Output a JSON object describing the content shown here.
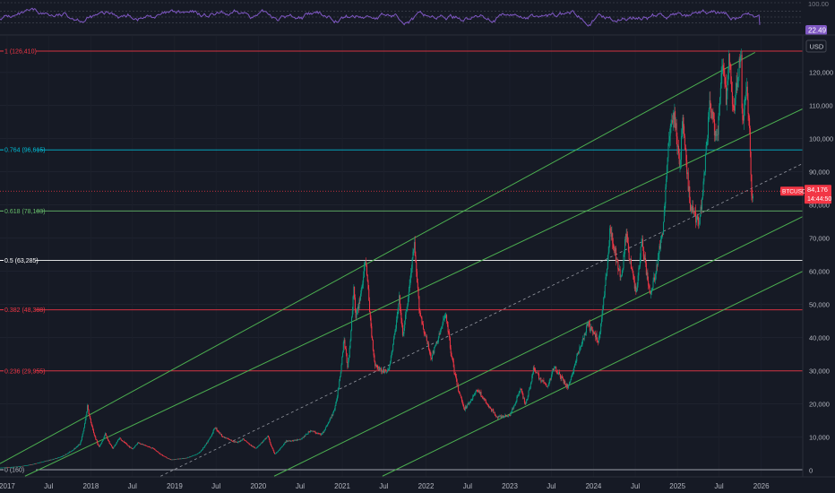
{
  "rsi_panel": {
    "level_label": "100.00",
    "value_label": "22.49",
    "levels": [
      100,
      70,
      50,
      30
    ],
    "value": 22.49,
    "line_color": "#7e57c2",
    "badge_color": "#7e57c2"
  },
  "price_panel": {
    "currency_button": "USD",
    "symbol_badge": "BTCUSD",
    "last_price": "84,176",
    "countdown": "14:44:50",
    "badge_color": "#f23645"
  },
  "chart_data": {
    "type": "candlestick",
    "symbol": "BTCUSD",
    "x_range": [
      "2016-12-01",
      "2026-07-01"
    ],
    "ylim": [
      -2000,
      131000
    ],
    "x_ticks": [
      "2017",
      "Jul",
      "2018",
      "Jul",
      "2019",
      "Jul",
      "2020",
      "Jul",
      "2021",
      "Jul",
      "2022",
      "Jul",
      "2023",
      "Jul",
      "2024",
      "Jul",
      "2025",
      "Jul",
      "2026"
    ],
    "x_tick_dates": [
      "2017-01-01",
      "2017-07-01",
      "2018-01-01",
      "2018-07-01",
      "2019-01-01",
      "2019-07-01",
      "2020-01-01",
      "2020-07-01",
      "2021-01-01",
      "2021-07-01",
      "2022-01-01",
      "2022-07-01",
      "2023-01-01",
      "2023-07-01",
      "2024-01-01",
      "2024-07-01",
      "2025-01-01",
      "2025-07-01",
      "2026-01-01"
    ],
    "y_ticks": [
      0,
      10000,
      20000,
      30000,
      40000,
      50000,
      60000,
      70000,
      80000,
      90000,
      100000,
      110000,
      120000
    ],
    "y_tick_labels": [
      "0",
      "10,000",
      "20,000",
      "30,000",
      "40,000",
      "50,000",
      "60,000",
      "70,000",
      "80,000",
      "90,000",
      "100,000",
      "110,000",
      "120,000"
    ],
    "fib_levels": [
      {
        "label": "1 (126,410)",
        "value": 126410,
        "color": "#f23645"
      },
      {
        "label": "0.764 (96,615)",
        "value": 96615,
        "color": "#00bcd4"
      },
      {
        "label": "0.618 (78,183)",
        "value": 78183,
        "color": "#66bb6a"
      },
      {
        "label": "0.5 (63,285)",
        "value": 63285,
        "color": "#ffffff"
      },
      {
        "label": "0.382 (48,388)",
        "value": 48388,
        "color": "#f23645"
      },
      {
        "label": "0.236 (29,955)",
        "value": 29955,
        "color": "#f23645"
      },
      {
        "label": "0 (160)",
        "value": 160,
        "color": "#b2b5be"
      }
    ],
    "channel_lines": [
      {
        "style": "solid",
        "points": [
          [
            "2016-12-01",
            2000
          ],
          [
            "2025-12-05",
            126000
          ]
        ]
      },
      {
        "style": "solid",
        "points": [
          [
            "2017-03-20",
            -1800
          ],
          [
            "2026-07-01",
            109000
          ]
        ]
      },
      {
        "style": "dashed",
        "points": [
          [
            "2018-11-01",
            -1800
          ],
          [
            "2026-07-01",
            92500
          ]
        ]
      },
      {
        "style": "solid",
        "points": [
          [
            "2020-03-10",
            -1800
          ],
          [
            "2026-07-01",
            76500
          ]
        ]
      },
      {
        "style": "solid",
        "points": [
          [
            "2021-06-25",
            -1800
          ],
          [
            "2026-07-01",
            60000
          ]
        ]
      }
    ],
    "price_path": [
      [
        "2016-12-01",
        750
      ],
      [
        "2017-03-01",
        1200
      ],
      [
        "2017-06-01",
        2500
      ],
      [
        "2017-09-01",
        4300
      ],
      [
        "2017-11-15",
        8000
      ],
      [
        "2017-12-17",
        19500
      ],
      [
        "2018-02-06",
        7000
      ],
      [
        "2018-03-05",
        11000
      ],
      [
        "2018-04-06",
        6600
      ],
      [
        "2018-05-05",
        9800
      ],
      [
        "2018-07-01",
        6400
      ],
      [
        "2018-07-25",
        8400
      ],
      [
        "2018-10-01",
        6500
      ],
      [
        "2018-12-15",
        3200
      ],
      [
        "2019-02-15",
        3600
      ],
      [
        "2019-04-15",
        5100
      ],
      [
        "2019-06-26",
        13000
      ],
      [
        "2019-08-01",
        10000
      ],
      [
        "2019-10-01",
        8300
      ],
      [
        "2019-10-26",
        9500
      ],
      [
        "2019-12-18",
        6600
      ],
      [
        "2020-02-12",
        10400
      ],
      [
        "2020-03-13",
        4900
      ],
      [
        "2020-05-01",
        8800
      ],
      [
        "2020-07-01",
        9200
      ],
      [
        "2020-08-15",
        12000
      ],
      [
        "2020-10-01",
        10700
      ],
      [
        "2020-12-01",
        19000
      ],
      [
        "2021-01-08",
        40000
      ],
      [
        "2021-01-25",
        31000
      ],
      [
        "2021-02-21",
        57000
      ],
      [
        "2021-02-28",
        45000
      ],
      [
        "2021-04-14",
        64000
      ],
      [
        "2021-05-23",
        32000
      ],
      [
        "2021-06-22",
        30000
      ],
      [
        "2021-07-20",
        29800
      ],
      [
        "2021-09-07",
        52000
      ],
      [
        "2021-09-21",
        40500
      ],
      [
        "2021-11-10",
        68500
      ],
      [
        "2021-12-04",
        48000
      ],
      [
        "2022-01-24",
        34000
      ],
      [
        "2022-03-29",
        47500
      ],
      [
        "2022-05-12",
        27000
      ],
      [
        "2022-06-18",
        18500
      ],
      [
        "2022-08-14",
        24500
      ],
      [
        "2022-10-01",
        19200
      ],
      [
        "2022-11-09",
        16000
      ],
      [
        "2022-12-31",
        16500
      ],
      [
        "2023-02-16",
        24800
      ],
      [
        "2023-03-10",
        20000
      ],
      [
        "2023-04-14",
        30500
      ],
      [
        "2023-06-15",
        25000
      ],
      [
        "2023-07-13",
        31500
      ],
      [
        "2023-09-11",
        25000
      ],
      [
        "2023-10-24",
        35000
      ],
      [
        "2023-12-08",
        44000
      ],
      [
        "2024-01-23",
        39000
      ],
      [
        "2024-03-14",
        73500
      ],
      [
        "2024-05-01",
        57000
      ],
      [
        "2024-05-21",
        71500
      ],
      [
        "2024-07-05",
        53500
      ],
      [
        "2024-07-29",
        69500
      ],
      [
        "2024-09-06",
        52500
      ],
      [
        "2024-10-29",
        72500
      ],
      [
        "2024-11-22",
        99500
      ],
      [
        "2024-12-17",
        108000
      ],
      [
        "2025-01-13",
        91000
      ],
      [
        "2025-01-22",
        106000
      ],
      [
        "2025-02-28",
        79000
      ],
      [
        "2025-04-07",
        75000
      ],
      [
        "2025-05-22",
        111500
      ],
      [
        "2025-06-22",
        98500
      ],
      [
        "2025-07-14",
        123000
      ],
      [
        "2025-08-02",
        112000
      ],
      [
        "2025-08-14",
        124000
      ],
      [
        "2025-09-01",
        107500
      ],
      [
        "2025-10-06",
        126400
      ],
      [
        "2025-10-10",
        104500
      ],
      [
        "2025-10-27",
        115500
      ],
      [
        "2025-11-10",
        106000
      ],
      [
        "2025-11-21",
        80500
      ],
      [
        "2025-11-26",
        84176
      ]
    ]
  }
}
